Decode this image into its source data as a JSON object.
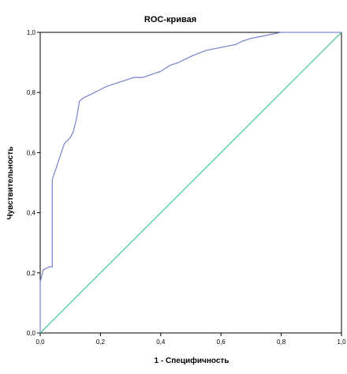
{
  "chart_data": {
    "type": "line",
    "title": "ROC-кривая",
    "xlabel": "1 - Специфичность",
    "ylabel": "Чувствительность",
    "xlim": [
      0,
      1
    ],
    "ylim": [
      0,
      1
    ],
    "x_ticks": [
      "0,0",
      "0,2",
      "0,4",
      "0,6",
      "0,8",
      "1,0"
    ],
    "y_ticks": [
      "0,0",
      "0,2",
      "0,4",
      "0,6",
      "0,8",
      "1,0"
    ],
    "grid": false,
    "series": [
      {
        "color": "#7f8ad1",
        "x": [
          0.0,
          0.0,
          0.01,
          0.03,
          0.04,
          0.04,
          0.05,
          0.06,
          0.07,
          0.08,
          0.09,
          0.1,
          0.11,
          0.12,
          0.13,
          0.14,
          0.16,
          0.18,
          0.2,
          0.22,
          0.25,
          0.28,
          0.31,
          0.34,
          0.37,
          0.4,
          0.43,
          0.46,
          0.5,
          0.55,
          0.6,
          0.65,
          0.67,
          0.7,
          0.75,
          0.8,
          0.9,
          1.0
        ],
        "y": [
          0.0,
          0.17,
          0.21,
          0.22,
          0.22,
          0.51,
          0.54,
          0.57,
          0.6,
          0.63,
          0.64,
          0.65,
          0.67,
          0.71,
          0.77,
          0.78,
          0.79,
          0.8,
          0.81,
          0.82,
          0.83,
          0.84,
          0.85,
          0.85,
          0.86,
          0.87,
          0.89,
          0.9,
          0.92,
          0.94,
          0.95,
          0.96,
          0.97,
          0.98,
          0.99,
          1.0,
          1.0,
          1.0
        ]
      },
      {
        "color": "#52c9a7",
        "x": [
          0,
          1
        ],
        "y": [
          0,
          1
        ]
      }
    ]
  }
}
